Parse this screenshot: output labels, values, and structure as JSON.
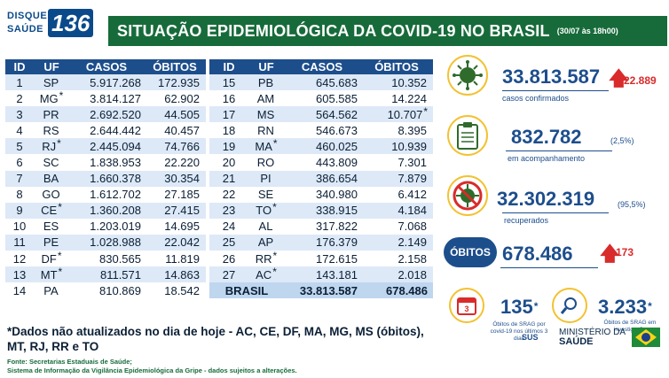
{
  "header": {
    "logo_top": "DISQUE",
    "logo_bottom": "SAÚDE",
    "logo_number": "136",
    "title": "SITUAÇÃO EPIDEMIOLÓGICA DA COVID-19 NO BRASIL",
    "date": "(30/07 às 18h00)"
  },
  "table": {
    "headers": [
      "ID",
      "UF",
      "CASOS",
      "ÓBITOS"
    ],
    "left_rows": [
      {
        "id": "1",
        "uf": "SP",
        "star": "",
        "casos": "5.917.268",
        "obitos": "172.935",
        "ob_star": ""
      },
      {
        "id": "2",
        "uf": "MG",
        "star": "*",
        "casos": "3.814.127",
        "obitos": "62.902",
        "ob_star": ""
      },
      {
        "id": "3",
        "uf": "PR",
        "star": "",
        "casos": "2.692.520",
        "obitos": "44.505",
        "ob_star": ""
      },
      {
        "id": "4",
        "uf": "RS",
        "star": "",
        "casos": "2.644.442",
        "obitos": "40.457",
        "ob_star": ""
      },
      {
        "id": "5",
        "uf": "RJ",
        "star": "*",
        "casos": "2.445.094",
        "obitos": "74.766",
        "ob_star": ""
      },
      {
        "id": "6",
        "uf": "SC",
        "star": "",
        "casos": "1.838.953",
        "obitos": "22.220",
        "ob_star": ""
      },
      {
        "id": "7",
        "uf": "BA",
        "star": "",
        "casos": "1.660.378",
        "obitos": "30.354",
        "ob_star": ""
      },
      {
        "id": "8",
        "uf": "GO",
        "star": "",
        "casos": "1.612.702",
        "obitos": "27.185",
        "ob_star": ""
      },
      {
        "id": "9",
        "uf": "CE",
        "star": "*",
        "casos": "1.360.208",
        "obitos": "27.415",
        "ob_star": ""
      },
      {
        "id": "10",
        "uf": "ES",
        "star": "",
        "casos": "1.203.019",
        "obitos": "14.695",
        "ob_star": ""
      },
      {
        "id": "11",
        "uf": "PE",
        "star": "",
        "casos": "1.028.988",
        "obitos": "22.042",
        "ob_star": ""
      },
      {
        "id": "12",
        "uf": "DF",
        "star": "*",
        "casos": "830.565",
        "obitos": "11.819",
        "ob_star": ""
      },
      {
        "id": "13",
        "uf": "MT",
        "star": "*",
        "casos": "811.571",
        "obitos": "14.863",
        "ob_star": ""
      },
      {
        "id": "14",
        "uf": "PA",
        "star": "",
        "casos": "810.869",
        "obitos": "18.542",
        "ob_star": ""
      }
    ],
    "right_rows": [
      {
        "id": "15",
        "uf": "PB",
        "star": "",
        "casos": "645.683",
        "obitos": "10.352",
        "ob_star": ""
      },
      {
        "id": "16",
        "uf": "AM",
        "star": "",
        "casos": "605.585",
        "obitos": "14.224",
        "ob_star": ""
      },
      {
        "id": "17",
        "uf": "MS",
        "star": "",
        "casos": "564.562",
        "obitos": "10.707",
        "ob_star": "*"
      },
      {
        "id": "18",
        "uf": "RN",
        "star": "",
        "casos": "546.673",
        "obitos": "8.395",
        "ob_star": ""
      },
      {
        "id": "19",
        "uf": "MA",
        "star": "*",
        "casos": "460.025",
        "obitos": "10.939",
        "ob_star": ""
      },
      {
        "id": "20",
        "uf": "RO",
        "star": "",
        "casos": "443.809",
        "obitos": "7.301",
        "ob_star": ""
      },
      {
        "id": "21",
        "uf": "PI",
        "star": "",
        "casos": "386.654",
        "obitos": "7.879",
        "ob_star": ""
      },
      {
        "id": "22",
        "uf": "SE",
        "star": "",
        "casos": "340.980",
        "obitos": "6.412",
        "ob_star": ""
      },
      {
        "id": "23",
        "uf": "TO",
        "star": "*",
        "casos": "338.915",
        "obitos": "4.184",
        "ob_star": ""
      },
      {
        "id": "24",
        "uf": "AL",
        "star": "",
        "casos": "317.822",
        "obitos": "7.068",
        "ob_star": ""
      },
      {
        "id": "25",
        "uf": "AP",
        "star": "",
        "casos": "176.379",
        "obitos": "2.149",
        "ob_star": ""
      },
      {
        "id": "26",
        "uf": "RR",
        "star": "*",
        "casos": "172.615",
        "obitos": "2.158",
        "ob_star": ""
      },
      {
        "id": "27",
        "uf": "AC",
        "star": "*",
        "casos": "143.181",
        "obitos": "2.018",
        "ob_star": ""
      }
    ],
    "total": {
      "label": "BRASIL",
      "casos": "33.813.587",
      "obitos": "678.486"
    }
  },
  "stats": {
    "confirmados": {
      "value": "33.813.587",
      "label": "casos confirmados",
      "delta": "22.889"
    },
    "acompanhamento": {
      "value": "832.782",
      "label": "em acompanhamento",
      "pct": "(2,5%)"
    },
    "recuperados": {
      "value": "32.302.319",
      "label": "recuperados",
      "pct": "(95,5%)"
    },
    "obitos": {
      "label": "ÓBITOS",
      "value": "678.486",
      "delta": "173"
    },
    "srag_covid": {
      "value": "135",
      "star": "*",
      "label": "Óbitos de SRAG por covid-19 nos últimos 3 dias",
      "calendar_day": "3"
    },
    "srag_invest": {
      "value": "3.233",
      "star": "*",
      "label": "Óbitos de SRAG em investigação"
    }
  },
  "footnote": "*Dados não atualizados no dia de hoje - AC, CE, DF, MA, MG, MS (óbitos), MT, RJ, RR e TO",
  "sources": {
    "line1": "Fonte: Secretarias Estaduais de Saúde;",
    "line2": "Sistema de Informação da Vigilância Epidemiológica da Gripe - dados sujeitos a alterações."
  },
  "footer": {
    "sus": "SUS",
    "ministry_line1": "MINISTÉRIO DA",
    "ministry_line2": "SAÚDE"
  },
  "colors": {
    "title_green": "#176b3a",
    "table_header": "#1d4e8c",
    "accent_red": "#d92b2b",
    "icon_ring": "#f2c232"
  },
  "icons": [
    "virus-icon",
    "clipboard-icon",
    "no-virus-icon",
    "calendar-icon",
    "magnifier-icon",
    "up-arrow-icon",
    "brazil-flag-icon"
  ]
}
